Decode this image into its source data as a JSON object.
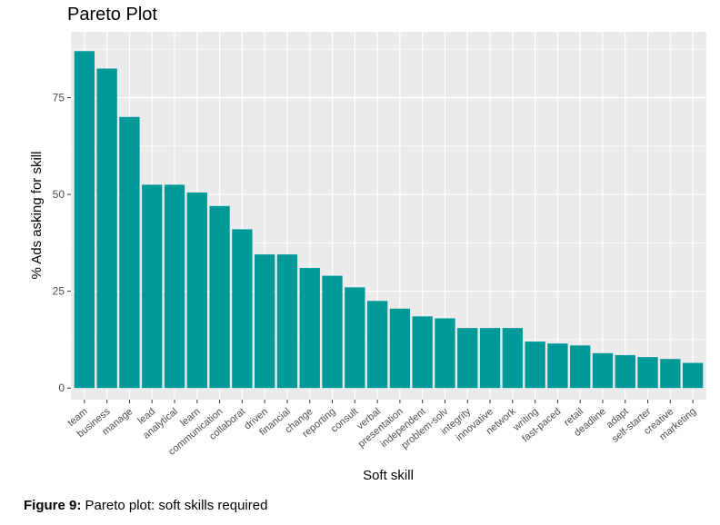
{
  "chart_data": {
    "type": "bar",
    "title": "Pareto Plot",
    "xlabel": "Soft skill",
    "ylabel": "% Ads asking for skill",
    "categories": [
      "team",
      "business",
      "manage",
      "lead",
      "analytical",
      "learn",
      "communication",
      "collaborat",
      "driven",
      "financial",
      "change",
      "reporting",
      "consult",
      "verbal",
      "presentation",
      "independent",
      "problem-solv",
      "integrity",
      "innovative",
      "network",
      "writing",
      "fast-paced",
      "retail",
      "deadline",
      "adapt",
      "self-starter",
      "creative",
      "marketing"
    ],
    "values": [
      87,
      82.5,
      70,
      52.5,
      52.5,
      50.5,
      47,
      41,
      34.5,
      34.5,
      31,
      29,
      26,
      22.5,
      20.5,
      18.5,
      18,
      15.5,
      15.5,
      15.5,
      12,
      11.5,
      11,
      9,
      8.5,
      8,
      7.5,
      6.5
    ],
    "yticks": [
      0,
      25,
      50,
      75
    ],
    "ylim": [
      -3,
      92
    ],
    "grid": true,
    "bar_color": "#009999",
    "panel_color": "#EBEBEB"
  },
  "caption": {
    "label": "Figure 9:",
    "text": " Pareto plot: soft skills required"
  }
}
